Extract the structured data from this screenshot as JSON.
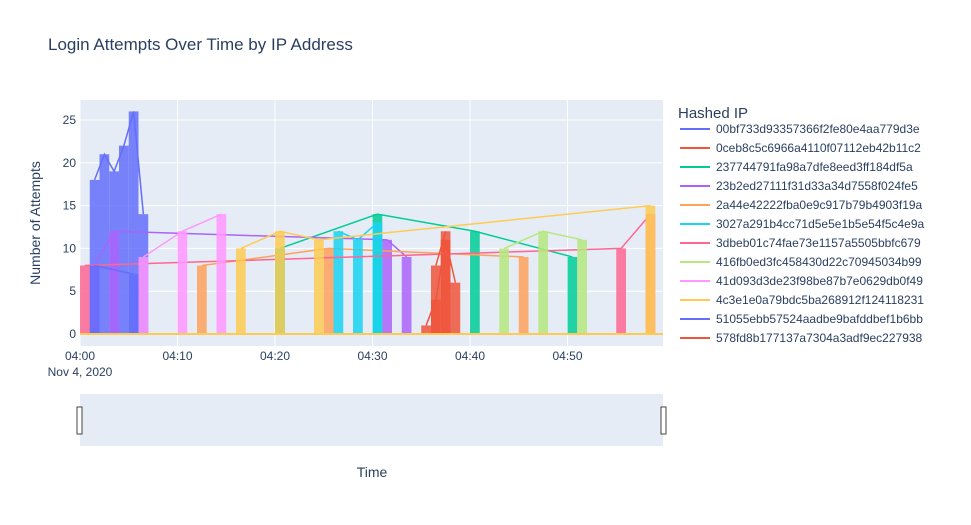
{
  "chart_data": {
    "type": "line",
    "title": "Login Attempts Over Time by IP Address",
    "xlabel": "Time",
    "ylabel": "Number of Attempts",
    "ylim": [
      0,
      27
    ],
    "xlim": [
      "2020-11-04 04:00",
      "2020-11-04 04:59"
    ],
    "x_ticks": [
      "04:00",
      "04:10",
      "04:20",
      "04:30",
      "04:40",
      "04:50"
    ],
    "x_tick_date": "Nov 4, 2020",
    "y_ticks": [
      0,
      5,
      10,
      15,
      20,
      25
    ],
    "grid": true,
    "legend_title": "Hashed IP",
    "legend_position": "right",
    "range_slider": true,
    "series": [
      {
        "name": "00bf733d93357366f2fe80e4aa779d3e",
        "color": "#636efa",
        "x": [
          "2020-11-04 04:01",
          "2020-11-04 04:02",
          "2020-11-04 04:03",
          "2020-11-04 04:04",
          "2020-11-04 04:05",
          "2020-11-04 04:06"
        ],
        "y": [
          18,
          21,
          19,
          22,
          26,
          14
        ]
      },
      {
        "name": "0ceb8c5c6966a4110f07112eb42b11c2",
        "color": "#ef553b",
        "x": [
          "2020-11-04 04:35",
          "2020-11-04 04:36",
          "2020-11-04 04:37",
          "2020-11-04 04:38"
        ],
        "y": [
          1,
          4,
          11,
          6
        ]
      },
      {
        "name": "237744791fa98a7dfe8eed3ff184df5a",
        "color": "#00cc96",
        "x": [
          "2020-11-04 04:20",
          "2020-11-04 04:30",
          "2020-11-04 04:40",
          "2020-11-04 04:50"
        ],
        "y": [
          10,
          14,
          12,
          9
        ]
      },
      {
        "name": "23b2ed27111f31d33a34d7558f024fe5",
        "color": "#ab63fa",
        "x": [
          "2020-11-04 04:01",
          "2020-11-04 04:03",
          "2020-11-04 04:31",
          "2020-11-04 04:33"
        ],
        "y": [
          8,
          12,
          11,
          9
        ]
      },
      {
        "name": "2a44e42222fba0e9c917b79b4903f19a",
        "color": "#ffa15a",
        "x": [
          "2020-11-04 04:12",
          "2020-11-04 04:25",
          "2020-11-04 04:45"
        ],
        "y": [
          8,
          10,
          9
        ]
      },
      {
        "name": "3027a291b4cc71d5e5e1b5e54f5c4e9a",
        "color": "#19d3f3",
        "x": [
          "2020-11-04 04:26",
          "2020-11-04 04:28",
          "2020-11-04 04:30"
        ],
        "y": [
          12,
          11,
          13
        ]
      },
      {
        "name": "3dbeb01c74fae73e1157a5505bbfc679",
        "color": "#ff6692",
        "x": [
          "2020-11-04 04:00",
          "2020-11-04 04:55",
          "2020-11-04 04:58"
        ],
        "y": [
          8,
          10,
          14
        ]
      },
      {
        "name": "416fb0ed3fc458430d22c70945034b99",
        "color": "#b6e880",
        "x": [
          "2020-11-04 04:43",
          "2020-11-04 04:47",
          "2020-11-04 04:51"
        ],
        "y": [
          10,
          12,
          11
        ]
      },
      {
        "name": "41d093d3de23f98be87b7e0629db0f49",
        "color": "#ff97ff",
        "x": [
          "2020-11-04 04:06",
          "2020-11-04 04:10",
          "2020-11-04 04:14"
        ],
        "y": [
          9,
          12,
          14
        ]
      },
      {
        "name": "4c3e1e0a79bdc5ba268912f124118231",
        "color": "#fecb52",
        "x": [
          "2020-11-04 04:16",
          "2020-11-04 04:20",
          "2020-11-04 04:24",
          "2020-11-04 04:58"
        ],
        "y": [
          10,
          12,
          11,
          15
        ]
      },
      {
        "name": "51055ebb57524aadbe9bafddbef1b6bb",
        "color": "#636efa",
        "x": [
          "2020-11-04 04:01",
          "2020-11-04 04:05"
        ],
        "y": [
          8,
          7
        ]
      },
      {
        "name": "578fd8b177137a7304a3adf9ec227938",
        "color": "#ef553b",
        "x": [
          "2020-11-04 04:36",
          "2020-11-04 04:37"
        ],
        "y": [
          8,
          12
        ]
      }
    ]
  }
}
